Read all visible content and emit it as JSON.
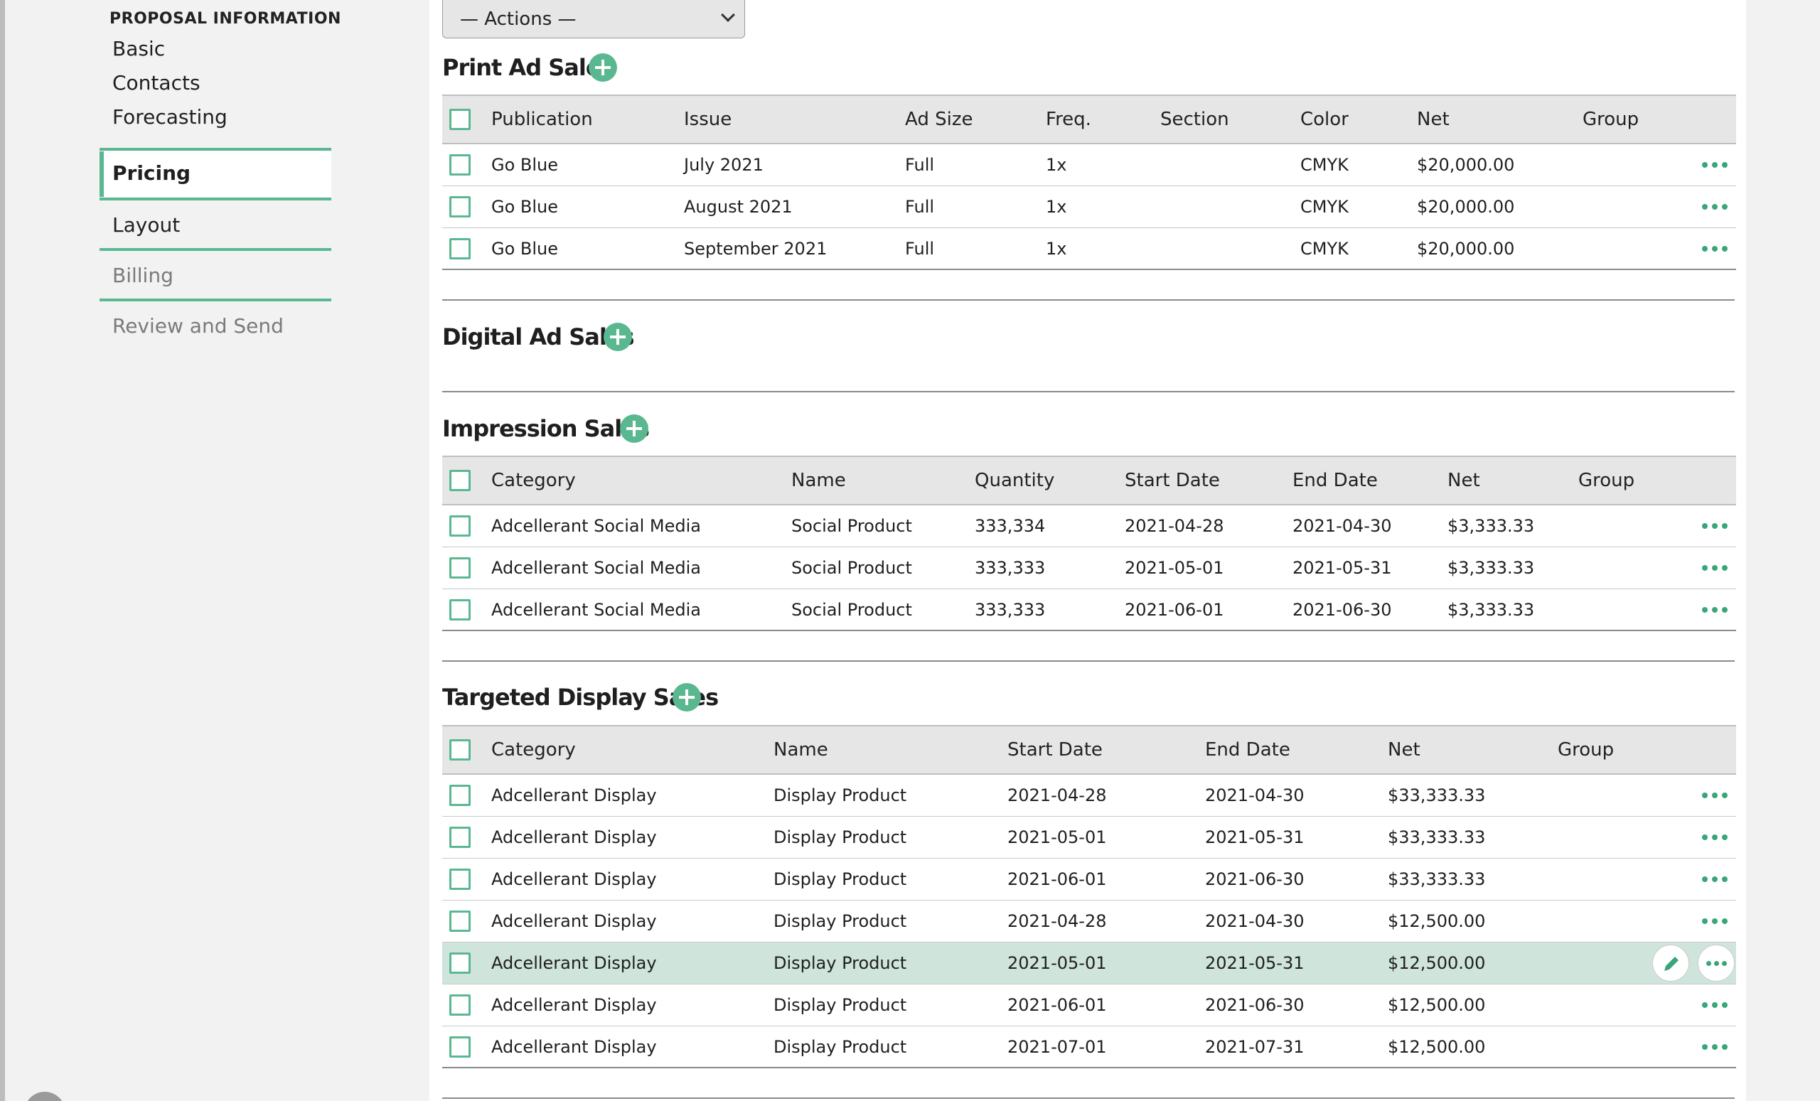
{
  "sidebar": {
    "heading": "PROPOSAL INFORMATION",
    "sub_items": [
      "Basic",
      "Contacts",
      "Forecasting"
    ],
    "steps": [
      {
        "label": "Pricing",
        "state": "active"
      },
      {
        "label": "Layout",
        "state": "enabled"
      },
      {
        "label": "Billing",
        "state": "disabled"
      },
      {
        "label": "Review and Send",
        "state": "disabled"
      }
    ]
  },
  "actions_select": {
    "selected": "— Actions —"
  },
  "print": {
    "title": "Print Ad Sales",
    "columns": [
      "Publication",
      "Issue",
      "Ad Size",
      "Freq.",
      "Section",
      "Color",
      "Net",
      "Group"
    ],
    "rows": [
      [
        "Go Blue",
        "July 2021",
        "Full",
        "1x",
        "",
        "CMYK",
        "$20,000.00",
        ""
      ],
      [
        "Go Blue",
        "August 2021",
        "Full",
        "1x",
        "",
        "CMYK",
        "$20,000.00",
        ""
      ],
      [
        "Go Blue",
        "September 2021",
        "Full",
        "1x",
        "",
        "CMYK",
        "$20,000.00",
        ""
      ]
    ]
  },
  "digital": {
    "title": "Digital Ad Sales"
  },
  "impression": {
    "title": "Impression Sales",
    "columns": [
      "Category",
      "Name",
      "Quantity",
      "Start Date",
      "End Date",
      "Net",
      "Group"
    ],
    "rows": [
      [
        "Adcellerant Social Media",
        "Social Product",
        "333,334",
        "2021-04-28",
        "2021-04-30",
        "$3,333.33",
        ""
      ],
      [
        "Adcellerant Social Media",
        "Social Product",
        "333,333",
        "2021-05-01",
        "2021-05-31",
        "$3,333.33",
        ""
      ],
      [
        "Adcellerant Social Media",
        "Social Product",
        "333,333",
        "2021-06-01",
        "2021-06-30",
        "$3,333.33",
        ""
      ]
    ]
  },
  "targeted": {
    "title": "Targeted Display Sales",
    "columns": [
      "Category",
      "Name",
      "Start Date",
      "End Date",
      "Net",
      "Group"
    ],
    "rows": [
      [
        "Adcellerant Display",
        "Display Product",
        "2021-04-28",
        "2021-04-30",
        "$33,333.33",
        ""
      ],
      [
        "Adcellerant Display",
        "Display Product",
        "2021-05-01",
        "2021-05-31",
        "$33,333.33",
        ""
      ],
      [
        "Adcellerant Display",
        "Display Product",
        "2021-06-01",
        "2021-06-30",
        "$33,333.33",
        ""
      ],
      [
        "Adcellerant Display",
        "Display Product",
        "2021-04-28",
        "2021-04-30",
        "$12,500.00",
        ""
      ],
      [
        "Adcellerant Display",
        "Display Product",
        "2021-05-01",
        "2021-05-31",
        "$12,500.00",
        ""
      ],
      [
        "Adcellerant Display",
        "Display Product",
        "2021-06-01",
        "2021-06-30",
        "$12,500.00",
        ""
      ],
      [
        "Adcellerant Display",
        "Display Product",
        "2021-07-01",
        "2021-07-31",
        "$12,500.00",
        ""
      ]
    ],
    "highlighted_row": 4
  },
  "icons": {
    "add": "plus-circle-icon",
    "more": "ellipsis-icon",
    "edit": "pencil-icon",
    "dropdown": "chevron-down-icon"
  },
  "colors": {
    "accent": "#5ab891",
    "highlight_row": "#cfe4da",
    "header_bg": "#e6e6e6"
  }
}
